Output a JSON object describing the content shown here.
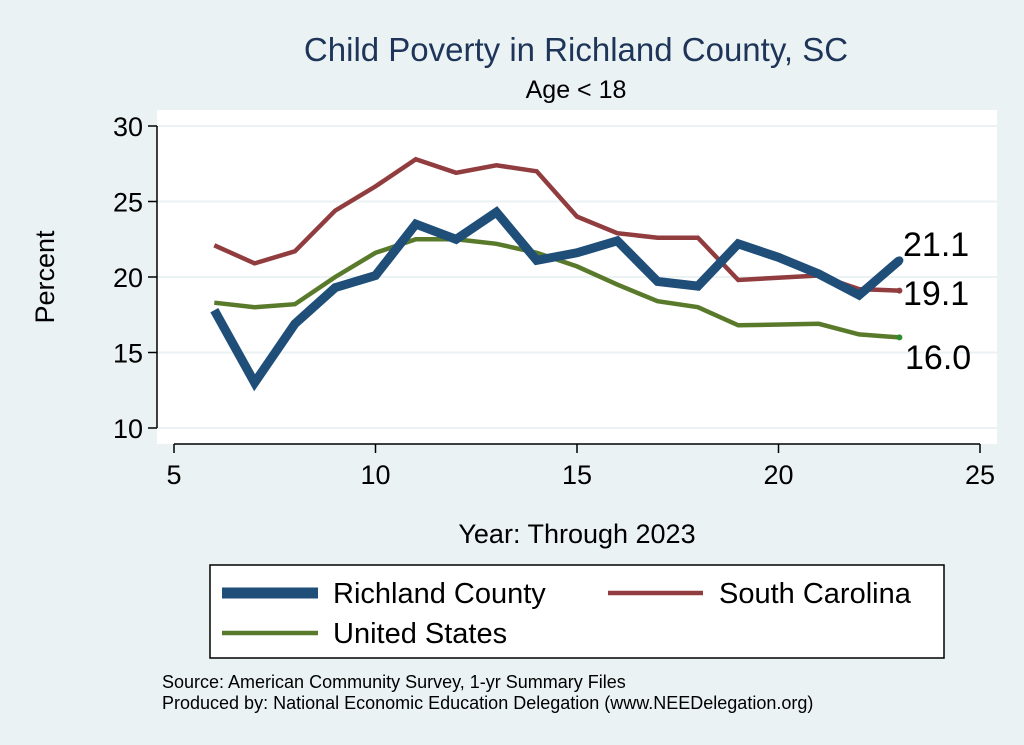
{
  "chart_data": {
    "type": "line",
    "title": "Child Poverty in Richland County, SC",
    "subtitle": "Age < 18",
    "xlabel": "Year: Through 2023",
    "ylabel": "Percent",
    "xlim": [
      5,
      25
    ],
    "ylim": [
      10,
      30
    ],
    "xticks": [
      5,
      10,
      15,
      20,
      25
    ],
    "yticks": [
      10,
      15,
      20,
      25,
      30
    ],
    "grid": true,
    "legend_position": "bottom",
    "series": [
      {
        "name": "Richland County",
        "color": "#1f4e79",
        "x": [
          6,
          7,
          8,
          9,
          10,
          11,
          12,
          13,
          14,
          15,
          16,
          17,
          18,
          19,
          20,
          21,
          22,
          23
        ],
        "values": [
          17.8,
          13.0,
          16.9,
          19.3,
          20.1,
          23.5,
          22.5,
          24.3,
          21.1,
          21.6,
          22.4,
          19.7,
          19.4,
          22.2,
          21.3,
          20.2,
          18.8,
          21.1
        ],
        "end_label": "21.1"
      },
      {
        "name": "South Carolina",
        "color": "#913c3e",
        "x": [
          6,
          7,
          8,
          9,
          10,
          11,
          12,
          13,
          14,
          15,
          16,
          17,
          18,
          19,
          21,
          22,
          23
        ],
        "values": [
          22.1,
          20.9,
          21.7,
          24.4,
          26.0,
          27.8,
          26.9,
          27.4,
          27.0,
          24.0,
          22.9,
          22.6,
          22.6,
          19.8,
          20.1,
          19.2,
          19.1
        ],
        "end_label": "19.1"
      },
      {
        "name": "United States",
        "color": "#5a7a2b",
        "x": [
          6,
          7,
          8,
          9,
          10,
          11,
          12,
          13,
          14,
          15,
          16,
          17,
          18,
          19,
          21,
          22,
          23
        ],
        "values": [
          18.3,
          18.0,
          18.2,
          20.0,
          21.6,
          22.5,
          22.5,
          22.2,
          21.6,
          20.7,
          19.5,
          18.4,
          18.0,
          16.8,
          16.9,
          16.2,
          16.0
        ],
        "end_label": "16.0"
      }
    ],
    "source_note": "Source: American Community Survey, 1-yr Summary Files",
    "producer_note": "Produced by: National Economic Education Delegation (www.NEEDelegation.org)"
  }
}
